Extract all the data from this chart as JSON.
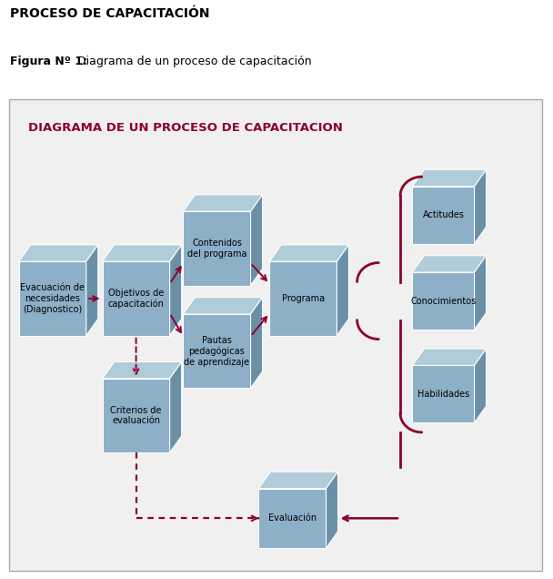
{
  "title_top": "PROCESO DE CAPACITACIÓN",
  "subtitle_bold": "Figura Nº 1:",
  "subtitle_rest": " Diagrama de un proceso de capacitación",
  "diagram_title": "DIAGRAMA DE UN PROCESO DE CAPACITACION",
  "bg_color": "#f0f0f0",
  "outer_bg": "#ffffff",
  "box_face": "#8dafc8",
  "box_top": "#b0ccd8",
  "box_side": "#6a90a8",
  "arrow_color": "#8b0030",
  "labels": {
    "evac": "Evacuación de\nnecesidades\n(Diagnostico)",
    "obj": "Objetivos de\ncapacitación",
    "cont": "Contenidos\ndel programa",
    "paut": "Pautas\npedagógicas\nde aprendizaje",
    "prog": "Programa",
    "crit": "Criterios de\nevaluación",
    "eval": "Evaluación",
    "acti": "Actitudes",
    "cono": "Conocimientos",
    "habi": "Habilidades"
  }
}
